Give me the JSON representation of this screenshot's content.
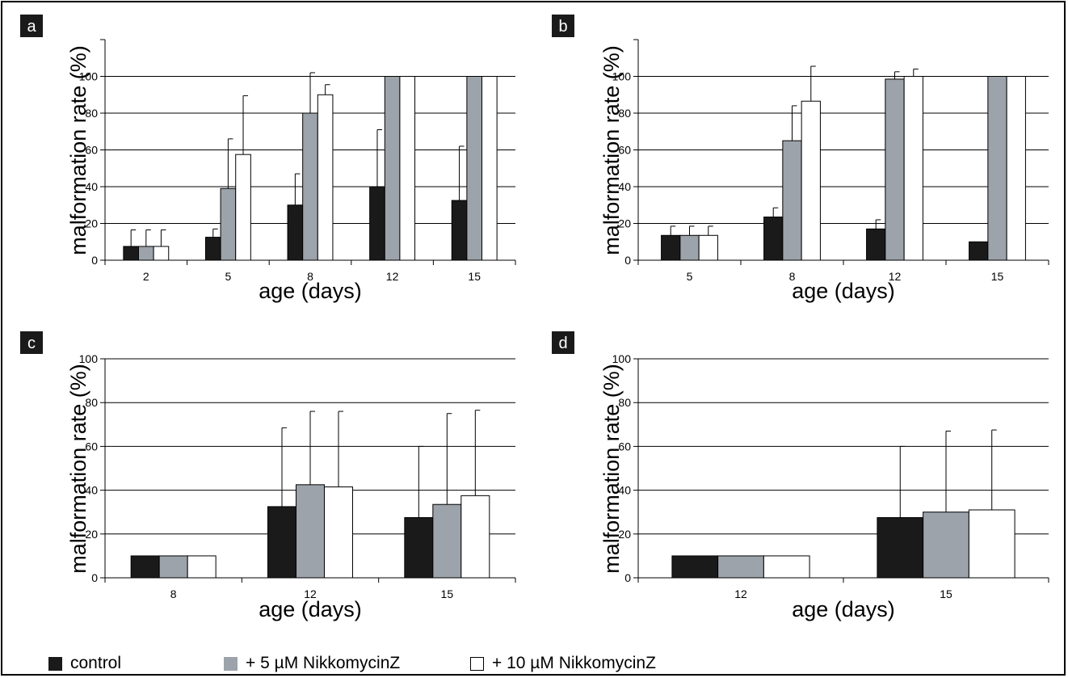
{
  "figure": {
    "series_colors": {
      "control": "#1a1a1a",
      "nikko5": "#9ca3aa",
      "nikko10": "#ffffff"
    },
    "legend": [
      {
        "label": "control",
        "swatch_color": "#1a1a1a"
      },
      {
        "label": "+ 5 µM NikkomycinZ",
        "swatch_color": "#9ca3aa"
      },
      {
        "label": "+ 10 µM NikkomycinZ",
        "swatch_color": "#ffffff"
      }
    ]
  },
  "chart_data": [
    {
      "type": "bar",
      "panel_label": "a",
      "categories": [
        "2",
        "5",
        "8",
        "12",
        "15"
      ],
      "ylabel": "malformation rate (%)",
      "xlabel": "age (days)",
      "ylim": [
        0,
        120
      ],
      "yticks": [
        0,
        20,
        40,
        60,
        80,
        100
      ],
      "grid": true,
      "series": [
        {
          "key": "control",
          "values": [
            7.5,
            12.5,
            30,
            40,
            32.5
          ],
          "error": [
            9,
            4.5,
            17,
            31,
            29.5
          ]
        },
        {
          "key": "nikko5",
          "values": [
            7.5,
            39,
            80,
            100,
            100
          ],
          "error": [
            9,
            27,
            22,
            0,
            0
          ]
        },
        {
          "key": "nikko10",
          "values": [
            7.5,
            57.5,
            90,
            100,
            100
          ],
          "error": [
            9,
            32,
            5.5,
            0,
            0
          ]
        }
      ]
    },
    {
      "type": "bar",
      "panel_label": "b",
      "categories": [
        "5",
        "8",
        "12",
        "15"
      ],
      "ylabel": "malformation rate (%)",
      "xlabel": "age (days)",
      "ylim": [
        0,
        120
      ],
      "yticks": [
        0,
        20,
        40,
        60,
        80,
        100
      ],
      "grid": true,
      "series": [
        {
          "key": "control",
          "values": [
            13.5,
            23.5,
            17,
            10
          ],
          "error": [
            5,
            5,
            5,
            0
          ]
        },
        {
          "key": "nikko5",
          "values": [
            13.5,
            65,
            98.5,
            100
          ],
          "error": [
            5,
            19,
            4,
            0
          ]
        },
        {
          "key": "nikko10",
          "values": [
            13.5,
            86.5,
            100,
            100
          ],
          "error": [
            5,
            19,
            4,
            0
          ]
        }
      ]
    },
    {
      "type": "bar",
      "panel_label": "c",
      "categories": [
        "8",
        "12",
        "15"
      ],
      "ylabel": "malformation rate (%)",
      "xlabel": "age (days)",
      "ylim": [
        0,
        100
      ],
      "yticks": [
        0,
        20,
        40,
        60,
        80,
        100
      ],
      "grid": true,
      "series": [
        {
          "key": "control",
          "values": [
            10,
            32.5,
            27.5
          ],
          "error": [
            0,
            36,
            32.5
          ]
        },
        {
          "key": "nikko5",
          "values": [
            10,
            42.5,
            33.5
          ],
          "error": [
            0,
            33.5,
            41.5
          ]
        },
        {
          "key": "nikko10",
          "values": [
            10,
            41.5,
            37.5
          ],
          "error": [
            0,
            34.5,
            39
          ]
        }
      ]
    },
    {
      "type": "bar",
      "panel_label": "d",
      "categories": [
        "12",
        "15"
      ],
      "ylabel": "malformation rate (%)",
      "xlabel": "age (days)",
      "ylim": [
        0,
        100
      ],
      "yticks": [
        0,
        20,
        40,
        60,
        80,
        100
      ],
      "grid": true,
      "series": [
        {
          "key": "control",
          "values": [
            10,
            27.5
          ],
          "error": [
            0,
            32.5
          ]
        },
        {
          "key": "nikko5",
          "values": [
            10,
            30
          ],
          "error": [
            0,
            37
          ]
        },
        {
          "key": "nikko10",
          "values": [
            10,
            31
          ],
          "error": [
            0,
            36.5
          ]
        }
      ]
    }
  ]
}
